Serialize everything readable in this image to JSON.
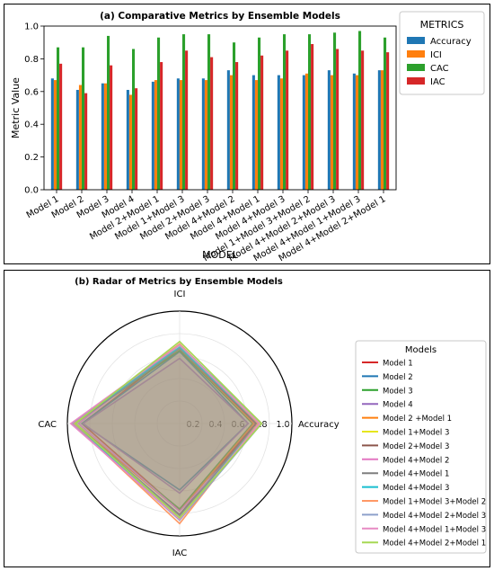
{
  "chart_data": [
    {
      "type": "bar",
      "title": "(a) Comparative Metrics by Ensemble Models",
      "xlabel": "MODEL",
      "ylabel": "Metric Value",
      "ylim": [
        0.0,
        1.0
      ],
      "yticks": [
        "0.0",
        "0.2",
        "0.4",
        "0.6",
        "0.8",
        "1.0"
      ],
      "grid": false,
      "legend_title": "METRICS",
      "legend_position": "outside-right",
      "categories": [
        "Model 1",
        "Model 2",
        "Model 3",
        "Model 4",
        "Model 2+Model 1",
        "Model 1+Model 3",
        "Model 2+Model 3",
        "Model 4+Model 2",
        "Model 4+Model 1",
        "Model 4+Model 3",
        "Model 1+Model 3+Model 2",
        "Model 4+Model 2+Model 3",
        "Model 4+Model 1+Model 3",
        "Model 4+Model 2+Model 1"
      ],
      "series": [
        {
          "name": "Accuracy",
          "color": "#1f77b4",
          "values": [
            0.68,
            0.61,
            0.65,
            0.61,
            0.66,
            0.68,
            0.68,
            0.73,
            0.7,
            0.7,
            0.7,
            0.73,
            0.71,
            0.73
          ]
        },
        {
          "name": "ICI",
          "color": "#ff7f0e",
          "values": [
            0.67,
            0.64,
            0.65,
            0.58,
            0.67,
            0.67,
            0.67,
            0.7,
            0.67,
            0.68,
            0.71,
            0.7,
            0.7,
            0.73
          ]
        },
        {
          "name": "CAC",
          "color": "#2ca02c",
          "values": [
            0.87,
            0.87,
            0.94,
            0.86,
            0.93,
            0.95,
            0.95,
            0.9,
            0.93,
            0.95,
            0.95,
            0.96,
            0.97,
            0.93
          ]
        },
        {
          "name": "IAC",
          "color": "#d62728",
          "values": [
            0.77,
            0.59,
            0.76,
            0.62,
            0.78,
            0.85,
            0.81,
            0.78,
            0.82,
            0.85,
            0.89,
            0.86,
            0.85,
            0.84
          ]
        }
      ]
    },
    {
      "type": "radar",
      "title": "(b) Radar of Metrics by Ensemble Models",
      "axes": [
        "Accuracy",
        "ICI",
        "CAC",
        "IAC"
      ],
      "radial_ticks": [
        "0.2",
        "0.4",
        "0.6",
        "0.8",
        "1.0"
      ],
      "rlim": [
        0,
        1.0
      ],
      "legend_title": "Models",
      "legend_position": "outside-right",
      "series": [
        {
          "name": "Model 1",
          "color": "#d62728",
          "values": [
            0.68,
            0.67,
            0.87,
            0.77
          ]
        },
        {
          "name": "Model 2",
          "color": "#1f77b4",
          "values": [
            0.61,
            0.64,
            0.87,
            0.59
          ]
        },
        {
          "name": "Model 3",
          "color": "#2ca02c",
          "values": [
            0.65,
            0.65,
            0.94,
            0.76
          ]
        },
        {
          "name": "Model 4",
          "color": "#9467bd",
          "values": [
            0.61,
            0.58,
            0.86,
            0.62
          ]
        },
        {
          "name": "Model 2 +Model 1",
          "color": "#ff7f0e",
          "values": [
            0.66,
            0.67,
            0.93,
            0.78
          ]
        },
        {
          "name": "Model 1+Model 3",
          "color": "#e6e61e",
          "values": [
            0.68,
            0.67,
            0.95,
            0.85
          ]
        },
        {
          "name": "Model 2+Model 3",
          "color": "#8c564b",
          "values": [
            0.68,
            0.67,
            0.95,
            0.81
          ]
        },
        {
          "name": "Model 4+Model 2",
          "color": "#e377c2",
          "values": [
            0.73,
            0.7,
            0.9,
            0.78
          ]
        },
        {
          "name": "Model 4+Model 1",
          "color": "#7f7f7f",
          "values": [
            0.7,
            0.67,
            0.93,
            0.82
          ]
        },
        {
          "name": "Model 4+Model 3",
          "color": "#17becf",
          "values": [
            0.7,
            0.68,
            0.95,
            0.85
          ]
        },
        {
          "name": "Model 1+Model 3+Model 2",
          "color": "#ff9966",
          "values": [
            0.7,
            0.71,
            0.95,
            0.89
          ]
        },
        {
          "name": "Model 4+Model 2+Model 3",
          "color": "#8da0cb",
          "values": [
            0.73,
            0.7,
            0.96,
            0.86
          ]
        },
        {
          "name": "Model 4+Model 1+Model 3",
          "color": "#e78ac3",
          "values": [
            0.71,
            0.7,
            0.97,
            0.85
          ]
        },
        {
          "name": "Model 4+Model 2+Model 1",
          "color": "#a6d854",
          "values": [
            0.73,
            0.73,
            0.93,
            0.84
          ]
        }
      ]
    }
  ]
}
